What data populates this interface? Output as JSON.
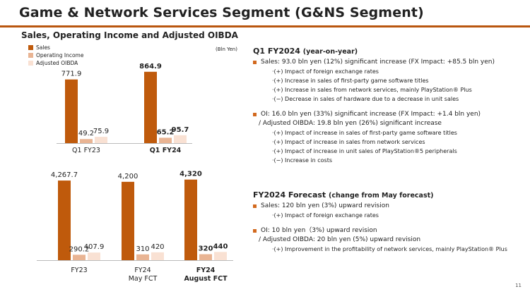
{
  "header": {
    "title": "Game & Network Services Segment (G&NS Segment)",
    "subtitle": "Sales, Operating Income and Adjusted OIBDA",
    "unit": "(Bln Yen)"
  },
  "colors": {
    "sales": "#bf5a0c",
    "oi": "#e9b493",
    "oibda": "#f9e1d3",
    "accent": "#d2691e"
  },
  "legend": [
    "Sales",
    "Operating Income",
    "Adjusted OIBDA"
  ],
  "chart_data": [
    {
      "type": "bar",
      "categories": [
        "Q1 FY23",
        "Q1 FY24"
      ],
      "series": [
        {
          "name": "Sales",
          "values": [
            771.9,
            864.9
          ]
        },
        {
          "name": "Operating Income",
          "values": [
            49.2,
            65.2
          ]
        },
        {
          "name": "Adjusted OIBDA",
          "values": [
            75.9,
            95.7
          ]
        }
      ],
      "labels": [
        [
          "771.9",
          "49.2",
          "75.9"
        ],
        [
          "864.9",
          "65.2",
          "95.7"
        ]
      ],
      "bold": [
        false,
        true
      ],
      "ylim": [
        0,
        1000
      ]
    },
    {
      "type": "bar",
      "categories": [
        "FY23",
        "FY24\nMay FCT",
        "FY24\nAugust FCT"
      ],
      "series": [
        {
          "name": "Sales",
          "values": [
            4267.7,
            4200,
            4320
          ]
        },
        {
          "name": "Operating Income",
          "values": [
            290.2,
            310,
            320
          ]
        },
        {
          "name": "Adjusted OIBDA",
          "values": [
            407.9,
            420,
            440
          ]
        }
      ],
      "labels": [
        [
          "4,267.7",
          "290.2",
          "407.9"
        ],
        [
          "4,200",
          "310",
          "420"
        ],
        [
          "4,320",
          "320",
          "440"
        ]
      ],
      "bold": [
        false,
        false,
        true
      ],
      "ylim": [
        0,
        4800
      ]
    }
  ],
  "q1": {
    "heading": "Q1 FY2024",
    "heading_note": "(year-on-year)",
    "sales_line": "Sales: 93.0 bln yen (12%) significant increase (FX Impact: +85.5 bln yen)",
    "sales_sub": [
      "·(+) Impact of foreign exchange rates",
      "·(+) Increase in sales of first-party game software titles",
      "·(+) Increase in sales from network services, mainly PlayStation® Plus",
      "·(−) Decrease in sales of hardware due to a decrease in unit sales"
    ],
    "oi_line": "OI:  16.0 bln yen (33%) significant increase  (FX Impact: +1.4 bln yen)",
    "oi_line2": "/ Adjusted OIBDA: 19.8 bln yen (26%) significant increase",
    "oi_sub": [
      "·(+) Impact of increase in sales of first-party game software titles",
      "·(+) Impact of increase in sales from network services",
      "·(+) Impact of increase in unit sales of PlayStation®5 peripherals",
      "·(−) Increase in costs"
    ]
  },
  "forecast": {
    "heading": "FY2024 Forecast",
    "heading_note": "(change from May forecast)",
    "sales_line": "Sales: 120 bln yen (3%) upward revision",
    "sales_sub": [
      "·(+) Impact of foreign exchange rates"
    ],
    "oi_line": "OI: 10 bln yen（3%) upward revision",
    "oi_line2": "/ Adjusted OIBDA: 20 bln yen (5%) upward revision",
    "oi_sub": [
      "·(+) Improvement in the profitability of network services, mainly PlayStation® Plus"
    ]
  },
  "page_number": "11"
}
